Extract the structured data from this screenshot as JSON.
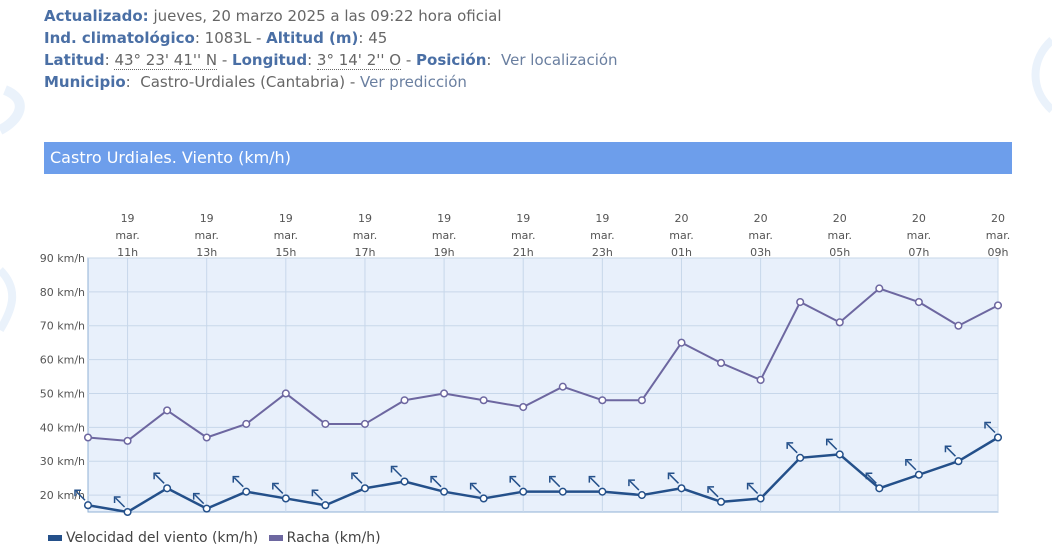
{
  "header": {
    "actualizado_label": "Actualizado:",
    "actualizado_value": "jueves, 20 marzo 2025 a las 09:22 hora oficial",
    "ind_label": "Ind. climatológico",
    "ind_value": ": 1083L - ",
    "altitud_label": "Altitud (m)",
    "altitud_value": ": 45",
    "latitud_label": "Latitud",
    "latitud_value": "43° 23' 41'' N",
    "longitud_label": "Longitud",
    "longitud_value": "3° 14' 2'' O",
    "posicion_label": "Posición",
    "ver_localizacion": "Ver localización",
    "municipio_label": "Municipio",
    "municipio_value": "Castro-Urdiales (Cantabria)",
    "ver_prediccion": "Ver predicción",
    "sep": " - ",
    "colon": ":"
  },
  "colors": {
    "wind": "#24508a",
    "gust": "#6d67a0",
    "plot_bg": "#e8f0fb",
    "grid": "#c7d7ea",
    "title_bar": "#6d9eeb"
  },
  "chart_data": {
    "type": "line",
    "title": "Castro Urdiales. Viento (km/h)",
    "ylim": [
      15,
      90
    ],
    "y_ticks": [
      "20 km/h",
      "30 km/h",
      "40 km/h",
      "50 km/h",
      "60 km/h",
      "70 km/h",
      "80 km/h",
      "90 km/h"
    ],
    "y_tick_values": [
      20,
      30,
      40,
      50,
      60,
      70,
      80,
      90
    ],
    "x_tick_labels": [
      [
        "19",
        "mar.",
        "11h"
      ],
      [
        "19",
        "mar.",
        "13h"
      ],
      [
        "19",
        "mar.",
        "15h"
      ],
      [
        "19",
        "mar.",
        "17h"
      ],
      [
        "19",
        "mar.",
        "19h"
      ],
      [
        "19",
        "mar.",
        "21h"
      ],
      [
        "19",
        "mar.",
        "23h"
      ],
      [
        "20",
        "mar.",
        "01h"
      ],
      [
        "20",
        "mar.",
        "03h"
      ],
      [
        "20",
        "mar.",
        "05h"
      ],
      [
        "20",
        "mar.",
        "07h"
      ],
      [
        "20",
        "mar.",
        "09h"
      ]
    ],
    "x": [
      "10h",
      "11h",
      "12h",
      "13h",
      "14h",
      "15h",
      "16h",
      "17h",
      "18h",
      "19h",
      "20h",
      "21h",
      "22h",
      "23h",
      "00h",
      "01h",
      "02h",
      "03h",
      "04h",
      "05h",
      "06h",
      "07h",
      "08h",
      "09h"
    ],
    "series": [
      {
        "name": "Velocidad del viento (km/h)",
        "values": [
          17,
          15,
          22,
          16,
          21,
          19,
          17,
          22,
          24,
          21,
          19,
          21,
          21,
          21,
          20,
          22,
          18,
          19,
          31,
          32,
          22,
          26,
          30,
          37
        ]
      },
      {
        "name": "Racha (km/h)",
        "values": [
          37,
          36,
          45,
          37,
          41,
          50,
          41,
          41,
          48,
          50,
          48,
          46,
          52,
          48,
          48,
          65,
          59,
          54,
          77,
          71,
          81,
          77,
          70,
          76
        ]
      }
    ],
    "wind_direction_arrow": "nw-arrow",
    "grid": true,
    "legend_placement": "bottom-left"
  }
}
